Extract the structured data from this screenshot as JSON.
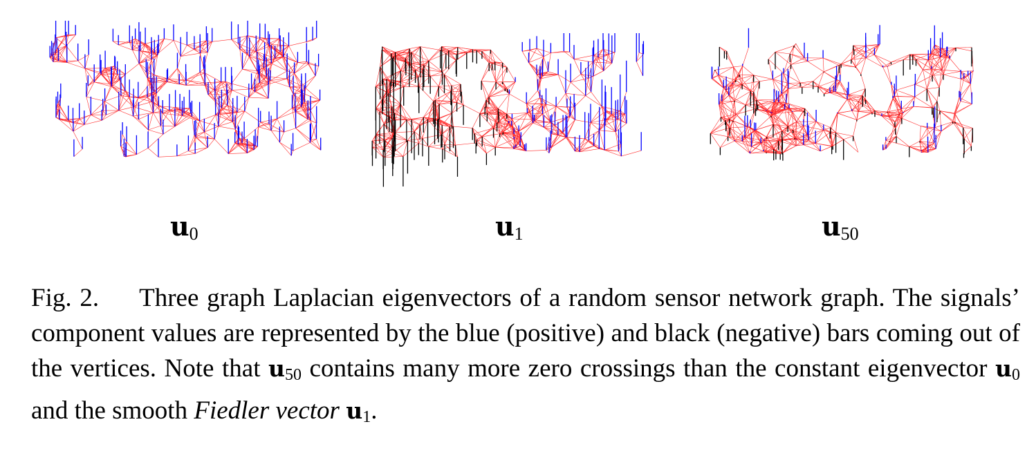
{
  "figure": {
    "panels": [
      {
        "symbol": "u",
        "subscript": "0",
        "bar_sign": "positive",
        "bar_color": "#0000ff",
        "seed": 11
      },
      {
        "symbol": "u",
        "subscript": "1",
        "bar_sign": "mixed",
        "bar_color": "#0000ff",
        "seed": 23
      },
      {
        "symbol": "u",
        "subscript": "50",
        "bar_sign": "mixed",
        "bar_color": "#0000ff",
        "seed": 37
      }
    ],
    "colors": {
      "edge": "#ff2a2a",
      "positive": "#0000ff",
      "negative": "#000000"
    }
  },
  "caption": {
    "fig_number": "Fig. 2.",
    "part1": "Three graph Laplacian eigenvectors of a random sensor network graph. The signals’ component values are represented by the blue (positive) and black (negative) bars coming out of the vertices. Note that ",
    "math1_symbol": "u",
    "math1_sub": "50",
    "part2": " contains many more zero crossings than the constant eigenvector ",
    "math2_symbol": "u",
    "math2_sub": "0",
    "part3": " and the smooth ",
    "italic": "Fiedler vector",
    "part4": " ",
    "math3_symbol": "u",
    "math3_sub": "1",
    "part5": "."
  }
}
